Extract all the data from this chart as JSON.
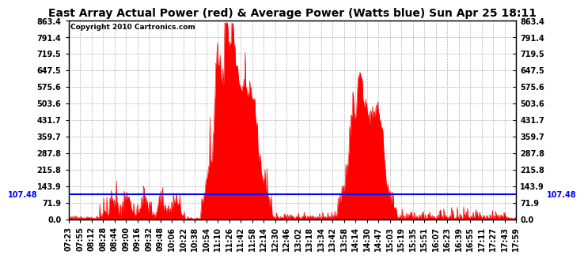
{
  "title": "East Array Actual Power (red) & Average Power (Watts blue) Sun Apr 25 18:11",
  "copyright": "Copyright 2010 Cartronics.com",
  "avg_power": 107.48,
  "y_ticks": [
    0.0,
    71.9,
    143.9,
    215.8,
    287.8,
    359.7,
    431.7,
    503.6,
    575.6,
    647.5,
    719.5,
    791.4,
    863.4
  ],
  "y_min": 0.0,
  "y_max": 863.4,
  "x_labels": [
    "07:23",
    "07:55",
    "08:12",
    "08:28",
    "08:44",
    "09:00",
    "09:16",
    "09:32",
    "09:48",
    "10:06",
    "10:22",
    "10:38",
    "10:54",
    "11:10",
    "11:26",
    "11:42",
    "11:58",
    "12:14",
    "12:30",
    "12:46",
    "13:02",
    "13:18",
    "13:34",
    "13:42",
    "13:58",
    "14:14",
    "14:30",
    "14:47",
    "15:03",
    "15:19",
    "15:35",
    "15:51",
    "16:07",
    "16:23",
    "16:39",
    "16:55",
    "17:11",
    "17:27",
    "17:43",
    "17:59"
  ],
  "background_color": "#ffffff",
  "fill_color": "#ff0000",
  "line_color": "#0000ff",
  "grid_color": "#a0a0a0",
  "title_fontsize": 10,
  "tick_fontsize": 7
}
